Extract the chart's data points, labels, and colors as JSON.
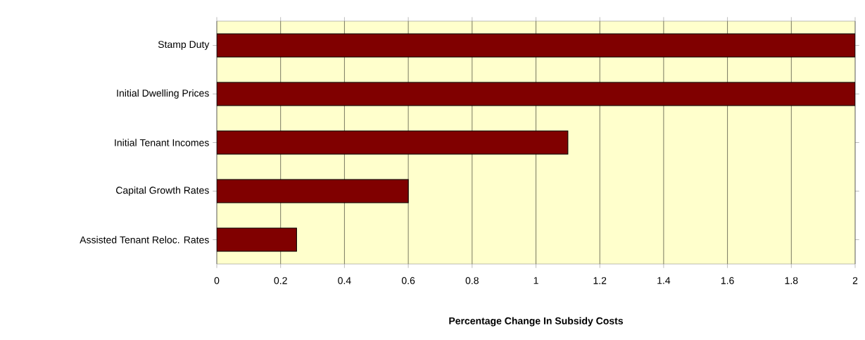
{
  "chart_data": {
    "type": "bar",
    "orientation": "horizontal",
    "categories": [
      "Stamp Duty",
      "Initial Dwelling Prices",
      "Initial Tenant Incomes",
      "Capital Growth Rates",
      "Assisted Tenant Reloc. Rates"
    ],
    "values": [
      2.0,
      2.0,
      1.1,
      0.6,
      0.25
    ],
    "color": "#800000",
    "xlim": [
      0,
      2
    ],
    "xticks": [
      0,
      0.2,
      0.4,
      0.6,
      0.8,
      1,
      1.2,
      1.4,
      1.6,
      1.8,
      2
    ],
    "xlabel": "Percentage Change In Subsidy Costs",
    "grid": "x"
  }
}
